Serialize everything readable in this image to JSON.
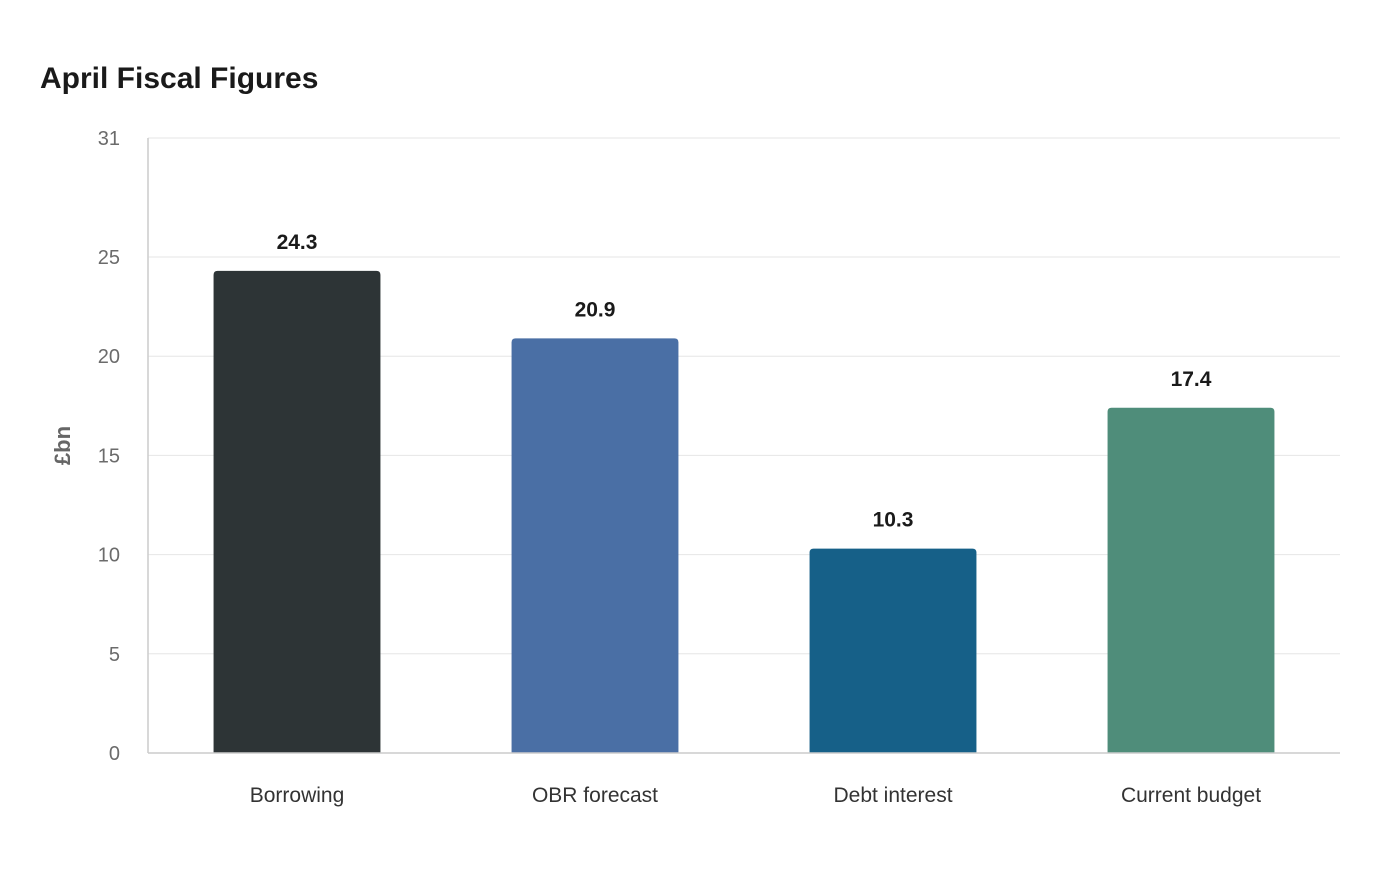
{
  "chart_data": {
    "type": "bar",
    "title": "April Fiscal Figures",
    "xlabel": "",
    "ylabel": "£bn",
    "categories": [
      "Borrowing",
      "OBR forecast",
      "Debt interest",
      "Current budget"
    ],
    "values": [
      24.3,
      20.9,
      10.3,
      17.4
    ],
    "value_labels": [
      "24.3",
      "20.9",
      "10.3",
      "17.4"
    ],
    "colors": [
      "#2d3436",
      "#4a6fa5",
      "#166088",
      "#4f8d7a"
    ],
    "ylim": [
      0,
      31
    ],
    "yticks": [
      0,
      5,
      10,
      15,
      20,
      25,
      31
    ],
    "grid": true,
    "legend": "none"
  }
}
